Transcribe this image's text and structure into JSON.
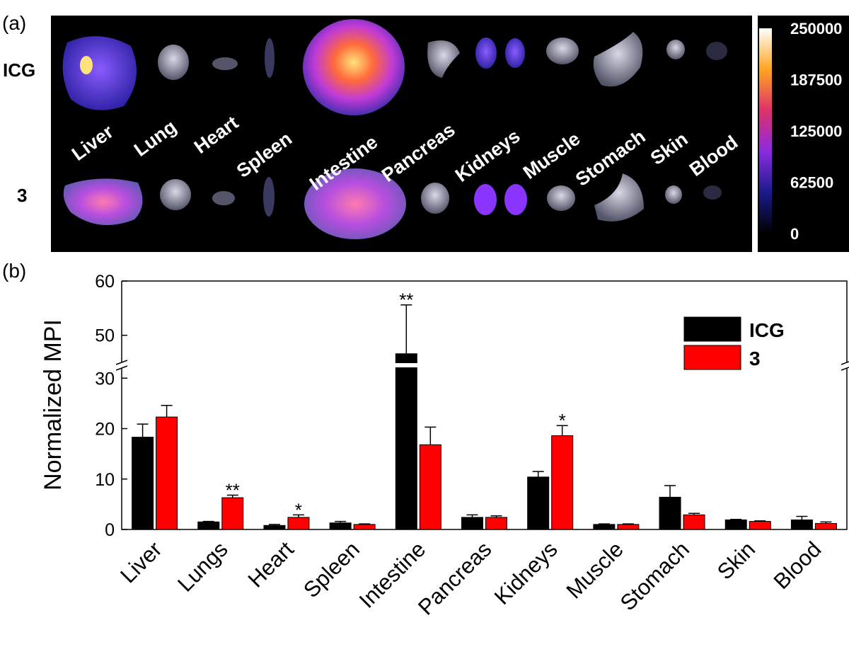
{
  "panel_a": {
    "label": "(a)",
    "row_labels": [
      "ICG",
      "3"
    ],
    "organs": [
      "Liver",
      "Lung",
      "Heart",
      "Spleen",
      "Intestine",
      "Pancreas",
      "Kidneys",
      "Muscle",
      "Stomach",
      "Skin",
      "Blood"
    ],
    "colorbar": {
      "lim": [
        0,
        250000
      ],
      "ticks": [
        250000,
        187500,
        125000,
        62500,
        0
      ]
    }
  },
  "chart_data": {
    "type": "bar",
    "panel_label": "(b)",
    "y_label": "Normalized MPI",
    "categories": [
      "Liver",
      "Lungs",
      "Heart",
      "Spleen",
      "Intestine",
      "Pancreas",
      "Kidneys",
      "Muscle",
      "Stomach",
      "Skin",
      "Blood"
    ],
    "series": [
      {
        "name": "ICG",
        "color": "#000000",
        "values": [
          18.3,
          1.5,
          0.8,
          1.3,
          46.6,
          2.4,
          10.4,
          1.0,
          6.4,
          1.9,
          1.9
        ],
        "errors": [
          2.6,
          0.1,
          0.2,
          0.3,
          9.0,
          0.5,
          1.1,
          0.1,
          2.3,
          0.1,
          0.7
        ]
      },
      {
        "name": "3",
        "color": "#ff0000",
        "values": [
          22.3,
          6.3,
          2.4,
          1.0,
          16.8,
          2.4,
          18.6,
          1.0,
          2.9,
          1.6,
          1.2
        ],
        "errors": [
          2.3,
          0.5,
          0.5,
          0.1,
          3.5,
          0.3,
          2.0,
          0.1,
          0.3,
          0.1,
          0.3
        ]
      }
    ],
    "annotations": [
      {
        "text": "**",
        "series": 1,
        "index": 1
      },
      {
        "text": "*",
        "series": 1,
        "index": 2
      },
      {
        "text": "**",
        "series": 0,
        "index": 4
      },
      {
        "text": "*",
        "series": 1,
        "index": 6
      }
    ],
    "ylim": [
      0,
      60
    ],
    "axis_break": [
      32,
      45
    ],
    "yticks": [
      0,
      10,
      20,
      30,
      50,
      60
    ],
    "legend": "upper right",
    "grid": false
  }
}
